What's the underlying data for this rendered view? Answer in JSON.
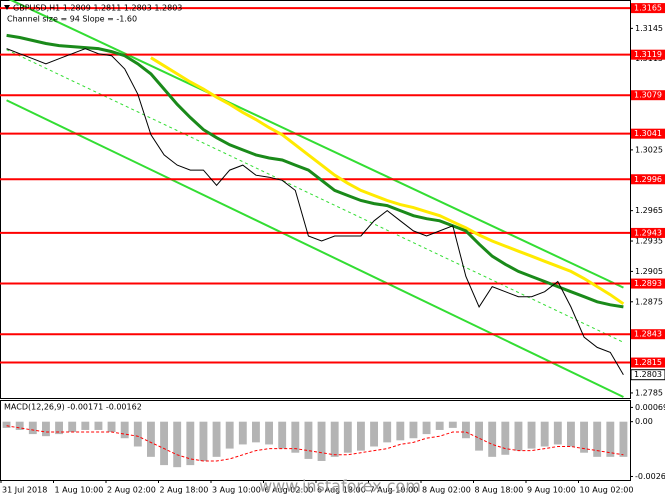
{
  "chart_data": {
    "type": "line",
    "title": "GBPUSD,H1 1.2809 1.2811 1.2803 1.2803",
    "subtitle": "Channel size = 94 Slope = -1.60",
    "categories": [
      "31 Jul 2018",
      null,
      null,
      null,
      "1 Aug 10:00",
      null,
      null,
      null,
      "2 Aug 02:00",
      null,
      null,
      null,
      "2 Aug 18:00",
      null,
      null,
      null,
      "3 Aug 10:00",
      null,
      null,
      null,
      "6 Aug 02:00",
      null,
      null,
      null,
      "6 Aug 18:00",
      null,
      null,
      null,
      "7 Aug 10:00",
      null,
      null,
      null,
      "8 Aug 02:00",
      null,
      null,
      null,
      "8 Aug 18:00",
      null,
      null,
      null,
      "9 Aug 10:00",
      null,
      null,
      null,
      "10 Aug 02:00",
      null,
      null,
      null
    ],
    "series": [
      {
        "color": "#000000",
        "values": [
          1.3125,
          1.312,
          1.3115,
          1.311,
          1.3115,
          1.312,
          1.3125,
          1.312,
          1.3118,
          1.3105,
          1.308,
          1.304,
          1.302,
          1.301,
          1.3005,
          1.3005,
          1.299,
          1.3005,
          1.301,
          1.3,
          1.2998,
          1.2995,
          1.2985,
          1.294,
          1.2935,
          1.294,
          1.294,
          1.294,
          1.2955,
          1.2965,
          1.2955,
          1.2945,
          1.294,
          1.2945,
          1.295,
          1.29,
          1.287,
          1.289,
          1.2885,
          1.288,
          1.288,
          1.2885,
          1.2895,
          1.287,
          1.284,
          1.283,
          1.2825,
          1.2803
        ]
      },
      {
        "color": "#1a8a1a",
        "values": [
          1.3138,
          1.3136,
          1.3133,
          1.313,
          1.3128,
          1.3127,
          1.3126,
          1.3125,
          1.3122,
          1.3118,
          1.311,
          1.31,
          1.3085,
          1.307,
          1.3057,
          1.3045,
          1.3037,
          1.303,
          1.3025,
          1.302,
          1.3017,
          1.3015,
          1.301,
          1.3005,
          1.2995,
          1.2985,
          1.298,
          1.2975,
          1.2972,
          1.297,
          1.2965,
          1.296,
          1.2957,
          1.2955,
          1.295,
          1.2945,
          1.2932,
          1.292,
          1.2912,
          1.2905,
          1.29,
          1.2895,
          1.289,
          1.2885,
          1.288,
          1.2875,
          1.2872,
          1.287
        ]
      },
      {
        "color": "#ffea00",
        "values": [
          null,
          null,
          null,
          null,
          null,
          null,
          null,
          null,
          null,
          null,
          null,
          1.3116,
          1.3108,
          1.31,
          1.3092,
          1.3085,
          1.3077,
          1.307,
          1.3062,
          1.3055,
          1.3047,
          1.304,
          1.303,
          1.302,
          1.301,
          1.3,
          1.2992,
          1.2985,
          1.298,
          1.2975,
          1.2971,
          1.2968,
          1.2964,
          1.296,
          1.2954,
          1.2948,
          1.2941,
          1.2935,
          1.293,
          1.2925,
          1.292,
          1.2915,
          1.291,
          1.2905,
          1.2898,
          1.289,
          1.2882,
          1.2873
        ]
      }
    ],
    "channel": {
      "color": "#33dd33",
      "upper": [
        1.3175,
        1.2889
      ],
      "middle": [
        1.3124,
        1.2835
      ],
      "lower": [
        1.3074,
        1.2781
      ]
    },
    "levels": {
      "color": "#ff0000",
      "values": [
        1.3165,
        1.3119,
        1.3079,
        1.3041,
        1.2996,
        1.2943,
        1.2893,
        1.2843,
        1.2815
      ]
    },
    "last_price": 1.2803,
    "ylim": [
      1.278,
      1.3173
    ],
    "yticks": [
      1.2785,
      1.2875,
      1.2905,
      1.2935,
      1.2965,
      1.3025,
      1.3115,
      1.3145
    ],
    "watermark": "www.instaforex.com",
    "macd": {
      "title": "MACD(12,26,9) -0.00171 -0.00162",
      "histogram_color": "#b4b4b4",
      "signal_color": "#ff0000",
      "histogram": [
        -0.0003,
        -0.0004,
        -0.0006,
        -0.0007,
        -0.0006,
        -0.0005,
        -0.0004,
        -0.0004,
        -0.0005,
        -0.0008,
        -0.0012,
        -0.0017,
        -0.0021,
        -0.0022,
        -0.0021,
        -0.0019,
        -0.0017,
        -0.0013,
        -0.0011,
        -0.001,
        -0.0011,
        -0.0013,
        -0.0015,
        -0.0018,
        -0.0019,
        -0.0017,
        -0.0015,
        -0.0014,
        -0.0012,
        -0.001,
        -0.0009,
        -0.0008,
        -0.0006,
        -0.0004,
        -0.0003,
        -0.0008,
        -0.0014,
        -0.0017,
        -0.0016,
        -0.0014,
        -0.0013,
        -0.0012,
        -0.0011,
        -0.0012,
        -0.0015,
        -0.0017,
        -0.0017,
        -0.0017
      ],
      "signal": [
        -0.0002,
        -0.0003,
        -0.0004,
        -0.0005,
        -0.0005,
        -0.0005,
        -0.0005,
        -0.0005,
        -0.0005,
        -0.0006,
        -0.0007,
        -0.001,
        -0.0013,
        -0.0016,
        -0.0018,
        -0.0019,
        -0.0019,
        -0.0018,
        -0.0016,
        -0.0014,
        -0.0013,
        -0.0013,
        -0.0013,
        -0.0014,
        -0.0015,
        -0.0016,
        -0.0016,
        -0.0015,
        -0.0014,
        -0.0013,
        -0.0011,
        -0.001,
        -0.0008,
        -0.0007,
        -0.0005,
        -0.0005,
        -0.0008,
        -0.0011,
        -0.0013,
        -0.0014,
        -0.0014,
        -0.0013,
        -0.0012,
        -0.0012,
        -0.0013,
        -0.0014,
        -0.0015,
        -0.0016
      ],
      "ylim": [
        -0.00282,
        0.001
      ],
      "yticks": [
        -0.00265,
        {
          "value": 0,
          "label": "0.00"
        },
        0.00069
      ]
    }
  }
}
